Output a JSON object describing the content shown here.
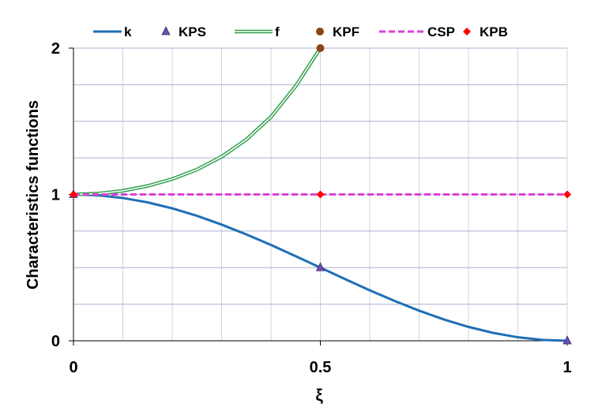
{
  "chart_data": {
    "type": "line",
    "title": "",
    "xlabel": "ξ",
    "ylabel": "Characteristics functions",
    "xlim": [
      0,
      1
    ],
    "ylim": [
      0,
      2
    ],
    "x_ticks": [
      {
        "value": 0,
        "label": "0"
      },
      {
        "value": 0.5,
        "label": "0.5"
      },
      {
        "value": 1,
        "label": "1"
      }
    ],
    "y_ticks": [
      {
        "value": 0,
        "label": "0"
      },
      {
        "value": 1,
        "label": "1"
      },
      {
        "value": 2,
        "label": "2"
      }
    ],
    "x_minor_step": 0.1,
    "y_minor_step": 0.25,
    "grid": true,
    "legend_position": "top",
    "series": [
      {
        "name": "k",
        "kind": "line",
        "style": "solid",
        "color": "#1f6fb5",
        "x": [
          0,
          0.05,
          0.1,
          0.15,
          0.2,
          0.25,
          0.3,
          0.35,
          0.4,
          0.45,
          0.5,
          0.55,
          0.6,
          0.65,
          0.7,
          0.75,
          0.8,
          0.85,
          0.9,
          0.95,
          1
        ],
        "y": [
          1,
          0.994,
          0.976,
          0.946,
          0.905,
          0.854,
          0.794,
          0.727,
          0.655,
          0.578,
          0.5,
          0.422,
          0.345,
          0.273,
          0.206,
          0.146,
          0.095,
          0.054,
          0.024,
          0.006,
          0
        ]
      },
      {
        "name": "KPS",
        "kind": "markers",
        "marker": "triangle",
        "color": "#6a4fb0",
        "x": [
          0,
          0.5,
          1
        ],
        "y": [
          1,
          0.5,
          0
        ]
      },
      {
        "name": "f",
        "kind": "line",
        "style": "double",
        "color": "#2e9e4a",
        "x": [
          0,
          0.05,
          0.1,
          0.15,
          0.2,
          0.25,
          0.3,
          0.35,
          0.4,
          0.45,
          0.5
        ],
        "y": [
          1,
          1.006,
          1.025,
          1.058,
          1.105,
          1.17,
          1.258,
          1.375,
          1.53,
          1.74,
          2
        ]
      },
      {
        "name": "KPF",
        "kind": "markers",
        "marker": "circle",
        "color": "#8b4513",
        "x": [
          0.5
        ],
        "y": [
          2
        ]
      },
      {
        "name": "CSP",
        "kind": "line",
        "style": "dashed",
        "color": "#e040d8",
        "x": [
          0,
          1
        ],
        "y": [
          1,
          1
        ]
      },
      {
        "name": "KPB",
        "kind": "markers",
        "marker": "diamond",
        "color": "#ff0000",
        "x": [
          0,
          0.5,
          1
        ],
        "y": [
          1,
          1,
          1
        ]
      }
    ]
  }
}
